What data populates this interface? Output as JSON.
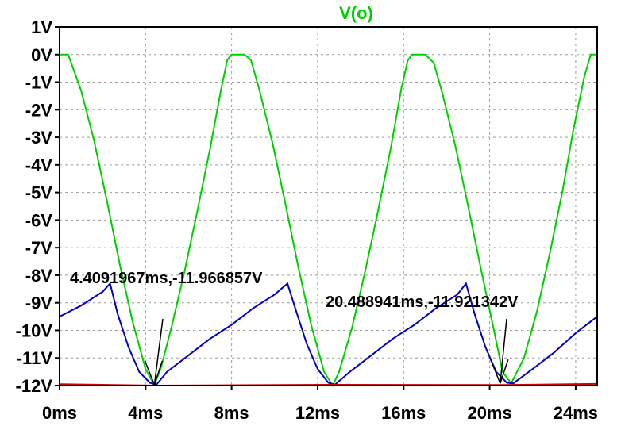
{
  "chart_data": {
    "type": "line",
    "title": "V(o)",
    "xlabel": "",
    "ylabel": "",
    "xlim": [
      0,
      25
    ],
    "ylim": [
      -12,
      1
    ],
    "x_ticks": [
      {
        "value": 0,
        "label": "0ms"
      },
      {
        "value": 4,
        "label": "4ms"
      },
      {
        "value": 8,
        "label": "8ms"
      },
      {
        "value": 12,
        "label": "12ms"
      },
      {
        "value": 16,
        "label": "16ms"
      },
      {
        "value": 20,
        "label": "20ms"
      },
      {
        "value": 24,
        "label": "24ms"
      }
    ],
    "y_ticks": [
      {
        "value": 1,
        "label": "1V"
      },
      {
        "value": 0,
        "label": "0V"
      },
      {
        "value": -1,
        "label": "-1V"
      },
      {
        "value": -2,
        "label": "-2V"
      },
      {
        "value": -3,
        "label": "-3V"
      },
      {
        "value": -4,
        "label": "-4V"
      },
      {
        "value": -5,
        "label": "-5V"
      },
      {
        "value": -6,
        "label": "-6V"
      },
      {
        "value": -7,
        "label": "-7V"
      },
      {
        "value": -8,
        "label": "-8V"
      },
      {
        "value": -9,
        "label": "-9V"
      },
      {
        "value": -10,
        "label": "-10V"
      },
      {
        "value": -11,
        "label": "-11V"
      },
      {
        "value": -12,
        "label": "-12V"
      }
    ],
    "grid": true,
    "series": [
      {
        "color": "#00d000",
        "x": [
          0,
          0.4,
          1.0,
          1.6,
          2.2,
          2.8,
          3.4,
          4.0,
          4.4,
          4.7,
          5.2,
          5.8,
          6.4,
          7.0,
          7.5,
          7.8,
          8.0,
          8.6,
          8.9,
          9.3,
          9.9,
          10.5,
          11.1,
          11.7,
          12.3,
          12.7,
          13.0,
          13.6,
          14.2,
          14.8,
          15.4,
          15.9,
          16.2,
          16.4,
          17.0,
          17.4,
          17.8,
          18.4,
          19.0,
          19.6,
          20.2,
          20.6,
          21.0,
          21.6,
          22.2,
          22.8,
          23.4,
          23.9,
          24.4,
          24.7,
          25.0
        ],
        "y": [
          0,
          0,
          -1.3,
          -3.1,
          -5.3,
          -7.6,
          -9.7,
          -11.4,
          -11.97,
          -11.4,
          -9.9,
          -7.9,
          -5.7,
          -3.4,
          -1.3,
          -0.2,
          0,
          0,
          -0.2,
          -1.3,
          -3.2,
          -5.4,
          -7.7,
          -9.8,
          -11.5,
          -12.0,
          -11.5,
          -9.9,
          -7.9,
          -5.7,
          -3.4,
          -1.2,
          -0.2,
          0,
          0,
          -0.3,
          -1.4,
          -3.3,
          -5.5,
          -7.8,
          -10.0,
          -11.5,
          -11.92,
          -11.0,
          -9.3,
          -7.2,
          -4.9,
          -2.7,
          -0.8,
          0,
          0
        ]
      },
      {
        "color": "#0000c8",
        "x": [
          0,
          1.0,
          2.0,
          2.35,
          2.7,
          3.2,
          3.7,
          4.2,
          4.5,
          5.0,
          6.0,
          7.0,
          8.0,
          9.0,
          10.0,
          10.6,
          11.0,
          11.5,
          12.0,
          12.5,
          12.8,
          13.5,
          14.5,
          15.5,
          16.5,
          17.5,
          18.5,
          18.9,
          19.3,
          19.8,
          20.3,
          20.8,
          21.1,
          22.0,
          23.0,
          24.0,
          25.0
        ],
        "y": [
          -9.5,
          -9.1,
          -8.6,
          -8.3,
          -9.4,
          -10.6,
          -11.5,
          -11.9,
          -11.97,
          -11.5,
          -10.9,
          -10.3,
          -9.8,
          -9.2,
          -8.7,
          -8.3,
          -9.3,
          -10.5,
          -11.4,
          -11.9,
          -11.97,
          -11.5,
          -10.9,
          -10.3,
          -9.8,
          -9.2,
          -8.7,
          -8.3,
          -9.4,
          -10.6,
          -11.5,
          -11.9,
          -11.92,
          -11.4,
          -10.8,
          -10.1,
          -9.5
        ]
      },
      {
        "color": "#d00000",
        "x": [
          0,
          4.4,
          12.7,
          20.5,
          25.0
        ],
        "y": [
          -11.95,
          -12.0,
          -11.97,
          -11.98,
          -11.94
        ]
      }
    ],
    "annotations": [
      {
        "text": "4.4091967ms,-11.966857V",
        "x": 4.4091967,
        "y": -11.966857
      },
      {
        "text": "20.488941ms,-11.921342V",
        "x": 20.488941,
        "y": -11.921342
      }
    ]
  }
}
